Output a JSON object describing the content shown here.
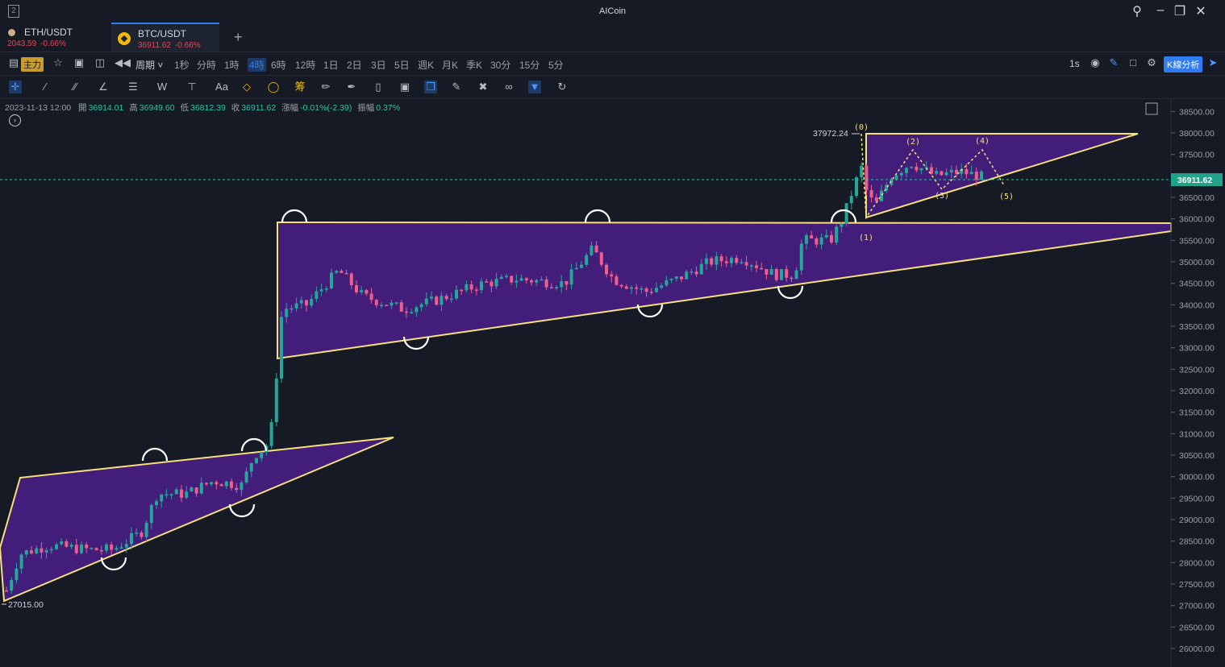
{
  "window": {
    "title": "AICoin",
    "left_icon": "2"
  },
  "tabs": [
    {
      "pair": "ETH/USDT",
      "price": "2043.59",
      "change": "-0.66%",
      "icon": "eth-dot-icon"
    },
    {
      "pair": "BTC/USDT",
      "price": "36911.62",
      "change": "-0.66%",
      "icon": "bnb-coin-icon",
      "active": true
    }
  ],
  "toolbar": {
    "main_badge": "主力",
    "period_label": "周期",
    "periods": [
      "1秒",
      "分時",
      "1時",
      "4時",
      "6時",
      "12時",
      "1日",
      "2日",
      "3日",
      "5日",
      "週K",
      "月K",
      "季K",
      "30分",
      "15分",
      "5分"
    ],
    "active_period": "4時",
    "refresh": "1s",
    "k_analysis": "K線分析"
  },
  "ohlc": {
    "datetime": "2023-11-13 12:00",
    "open_label": "開",
    "open": "36914.01",
    "high_label": "高",
    "high": "36949.60",
    "low_label": "低",
    "low": "36812.39",
    "close_label": "收",
    "close": "36911.62",
    "change_label": "漲幅",
    "change": "-0.01%(-2.39)",
    "amplitude_label": "振幅",
    "amplitude": "0.37%"
  },
  "chart_data": {
    "type": "candlestick",
    "y_ticks": [
      "38500.00",
      "38000.00",
      "37500.00",
      "37000.00",
      "36500.00",
      "36000.00",
      "35500.00",
      "35000.00",
      "34500.00",
      "34000.00",
      "33500.00",
      "33000.00",
      "32500.00",
      "32000.00",
      "31500.00",
      "31000.00",
      "30500.00",
      "30000.00",
      "29500.00",
      "29000.00",
      "28500.00",
      "28000.00",
      "27500.00",
      "27000.00",
      "26500.00",
      "26000.00"
    ],
    "ylim": [
      25800,
      38750
    ],
    "current_price": 36911.62,
    "current_price_label": "36911.62",
    "high_marker": "37972.24",
    "low_marker": "27015.00",
    "wave_labels": [
      "(0)",
      "(1)",
      "(2)",
      "(3)",
      "(4)",
      "(5)"
    ],
    "colors": {
      "up": "#26a69a",
      "down": "#ef5e8a",
      "pattern": "#f7e07a",
      "fill": "#4a208a"
    }
  }
}
